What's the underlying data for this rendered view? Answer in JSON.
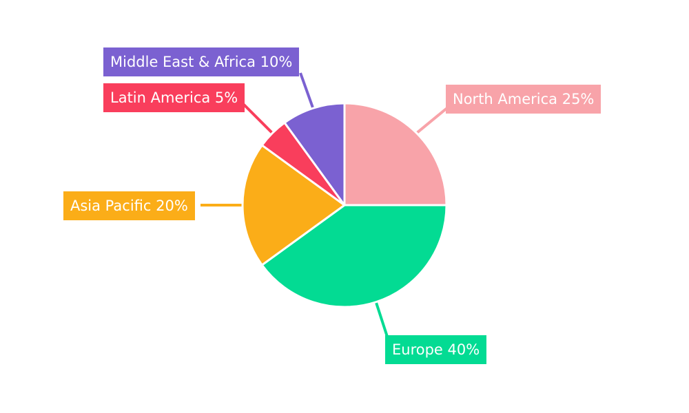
{
  "page": {
    "background_color": "#FFFFFF"
  },
  "chart_data": {
    "type": "pie",
    "title": "",
    "legend": "none",
    "start_angle": "top",
    "direction": "clockwise",
    "unit": "%",
    "border_color": "#FFFFFF",
    "label_text_color": "#FFFFFF",
    "slices": [
      {
        "label": "North America",
        "value": 25,
        "color": "#F8A3A9",
        "display": "North America 25%"
      },
      {
        "label": "Europe",
        "value": 40,
        "color": "#03DB93",
        "display": "Europe 40%"
      },
      {
        "label": "Asia Pacific",
        "value": 20,
        "color": "#FBAD18",
        "display": "Asia Pacific 20%"
      },
      {
        "label": "Latin America",
        "value": 5,
        "color": "#F93E5C",
        "display": "Latin America 5%"
      },
      {
        "label": "Middle East & Africa",
        "value": 10,
        "color": "#7B61D1",
        "display": "Middle East & Africa 10%"
      }
    ]
  }
}
